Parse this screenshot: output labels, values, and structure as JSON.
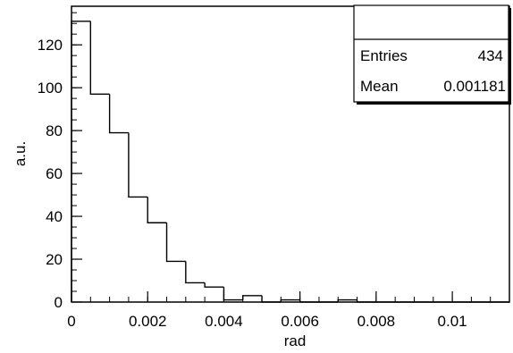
{
  "chart_data": {
    "type": "bar",
    "histogram": true,
    "xlabel": "rad",
    "ylabel": "a.u.",
    "xlim": [
      0,
      0.0115
    ],
    "ylim": [
      0,
      138
    ],
    "bin_width": 0.0005,
    "bins": [
      {
        "x0": 0.0,
        "x1": 0.0005,
        "value": 131
      },
      {
        "x0": 0.0005,
        "x1": 0.001,
        "value": 97
      },
      {
        "x0": 0.001,
        "x1": 0.0015,
        "value": 79
      },
      {
        "x0": 0.0015,
        "x1": 0.002,
        "value": 49
      },
      {
        "x0": 0.002,
        "x1": 0.0025,
        "value": 37
      },
      {
        "x0": 0.0025,
        "x1": 0.003,
        "value": 19
      },
      {
        "x0": 0.003,
        "x1": 0.0035,
        "value": 9
      },
      {
        "x0": 0.0035,
        "x1": 0.004,
        "value": 7
      },
      {
        "x0": 0.004,
        "x1": 0.0045,
        "value": 1
      },
      {
        "x0": 0.0045,
        "x1": 0.005,
        "value": 3
      },
      {
        "x0": 0.005,
        "x1": 0.0055,
        "value": 0
      },
      {
        "x0": 0.0055,
        "x1": 0.006,
        "value": 1
      },
      {
        "x0": 0.006,
        "x1": 0.0065,
        "value": 0
      },
      {
        "x0": 0.0065,
        "x1": 0.007,
        "value": 0
      },
      {
        "x0": 0.007,
        "x1": 0.0075,
        "value": 1
      },
      {
        "x0": 0.0075,
        "x1": 0.008,
        "value": 0
      },
      {
        "x0": 0.008,
        "x1": 0.0085,
        "value": 0
      },
      {
        "x0": 0.0085,
        "x1": 0.009,
        "value": 0
      },
      {
        "x0": 0.009,
        "x1": 0.0095,
        "value": 0
      },
      {
        "x0": 0.0095,
        "x1": 0.01,
        "value": 0
      },
      {
        "x0": 0.01,
        "x1": 0.0105,
        "value": 0
      },
      {
        "x0": 0.0105,
        "x1": 0.011,
        "value": 0
      },
      {
        "x0": 0.011,
        "x1": 0.0115,
        "value": 0
      }
    ],
    "x_ticks": [
      {
        "value": 0,
        "label": "0"
      },
      {
        "value": 0.002,
        "label": "0.002"
      },
      {
        "value": 0.004,
        "label": "0.004"
      },
      {
        "value": 0.006,
        "label": "0.006"
      },
      {
        "value": 0.008,
        "label": "0.008"
      },
      {
        "value": 0.01,
        "label": "0.01"
      }
    ],
    "x_minor_step": 0.0005,
    "y_ticks": [
      {
        "value": 0,
        "label": "0"
      },
      {
        "value": 20,
        "label": "20"
      },
      {
        "value": 40,
        "label": "40"
      },
      {
        "value": 60,
        "label": "60"
      },
      {
        "value": 80,
        "label": "80"
      },
      {
        "value": 100,
        "label": "100"
      },
      {
        "value": 120,
        "label": "120"
      }
    ],
    "y_minor_step": 5,
    "grid": false,
    "stats_box": {
      "position": "top-right",
      "entries_label": "Entries",
      "entries_value": "434",
      "mean_label": "Mean",
      "mean_value": "0.001181"
    }
  }
}
